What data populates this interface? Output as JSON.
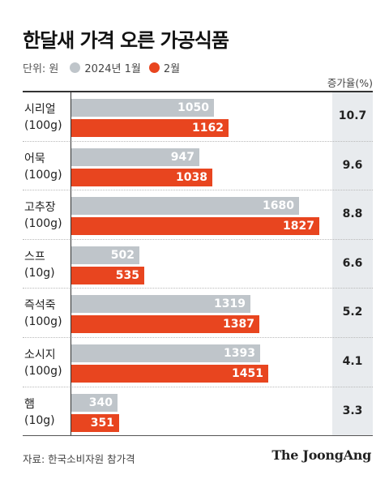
{
  "title": "한달새 가격 오른 가공식품",
  "unit_label": "단위: 원",
  "pct_header": "증가율(%)",
  "source": "자료: 한국소비자원 참가격",
  "brand": "The JoongAng",
  "colors": {
    "jan": "#bfc5ca",
    "feb": "#e8451f",
    "pct_bg": "#e8ebee"
  },
  "chart_data": {
    "type": "bar",
    "orientation": "horizontal",
    "title": "한달새 가격 오른 가공식품",
    "categories": [
      {
        "name": "시리얼",
        "unit": "(100g)"
      },
      {
        "name": "어묵",
        "unit": "(100g)"
      },
      {
        "name": "고추장",
        "unit": "(100g)"
      },
      {
        "name": "스프",
        "unit": "(10g)"
      },
      {
        "name": "즉석죽",
        "unit": "(100g)"
      },
      {
        "name": "소시지",
        "unit": "(100g)"
      },
      {
        "name": "햄",
        "unit": "(10g)"
      }
    ],
    "series": [
      {
        "name": "2024년 1월",
        "values": [
          1050,
          947,
          1680,
          502,
          1319,
          1393,
          340
        ]
      },
      {
        "name": "2월",
        "values": [
          1162,
          1038,
          1827,
          535,
          1387,
          1451,
          351
        ]
      }
    ],
    "increase_pct": [
      "10.7",
      "9.6",
      "8.8",
      "6.6",
      "5.2",
      "4.1",
      "3.3"
    ],
    "xlim": [
      0,
      1900
    ],
    "legend": "top-left"
  }
}
